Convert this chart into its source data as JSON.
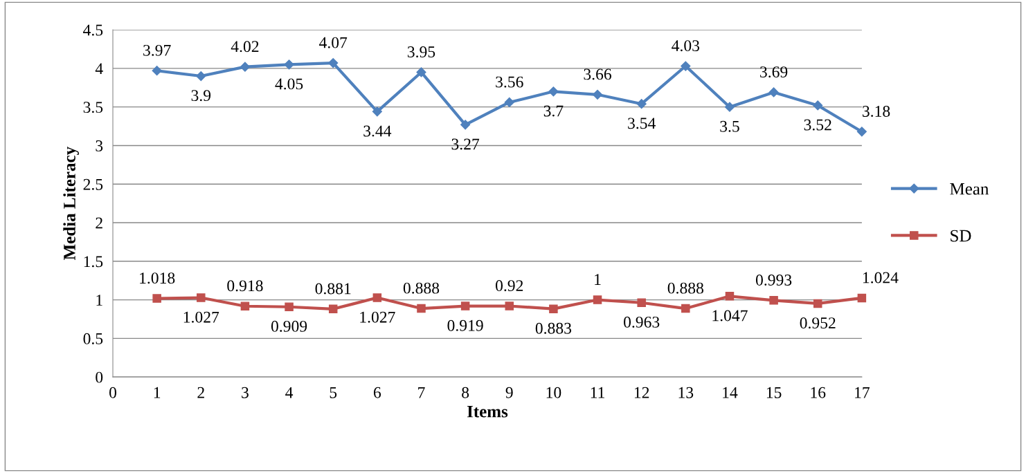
{
  "chart_data": {
    "type": "line",
    "xlabel": "Items",
    "ylabel": "Media Literacy",
    "x": [
      1,
      2,
      3,
      4,
      5,
      6,
      7,
      8,
      9,
      10,
      11,
      12,
      13,
      14,
      15,
      16,
      17
    ],
    "series": [
      {
        "name": "Mean",
        "color": "#4f81bd",
        "marker": "diamond",
        "values": [
          3.97,
          3.9,
          4.02,
          4.05,
          4.07,
          3.44,
          3.95,
          3.27,
          3.56,
          3.7,
          3.66,
          3.54,
          4.03,
          3.5,
          3.69,
          3.52,
          3.18
        ]
      },
      {
        "name": "SD",
        "color": "#c0504d",
        "marker": "square",
        "values": [
          1.018,
          1.027,
          0.918,
          0.909,
          0.881,
          1.027,
          0.888,
          0.919,
          0.92,
          0.883,
          1,
          0.963,
          0.888,
          1.047,
          0.993,
          0.952,
          1.024
        ]
      }
    ],
    "xlim": [
      0,
      17
    ],
    "xticks": [
      0,
      1,
      2,
      3,
      4,
      5,
      6,
      7,
      8,
      9,
      10,
      11,
      12,
      13,
      14,
      15,
      16,
      17
    ],
    "ylim": [
      0,
      4.5
    ],
    "yticks": [
      0,
      0.5,
      1,
      1.5,
      2,
      2.5,
      3,
      3.5,
      4,
      4.5
    ],
    "grid": "y",
    "legend": "right",
    "data_labels": true,
    "line_style": "solid"
  }
}
